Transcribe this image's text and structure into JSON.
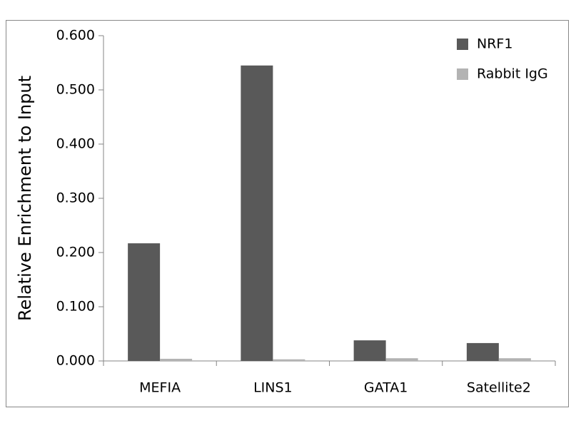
{
  "chart_data": {
    "type": "bar",
    "y_label": "Relative Enrichment to Input",
    "categories": [
      "MEFIA",
      "LINS1",
      "GATA1",
      "Satellite2"
    ],
    "series": [
      {
        "name": "NRF1",
        "color": "#595959",
        "values": [
          0.217,
          0.545,
          0.038,
          0.033
        ]
      },
      {
        "name": "Rabbit IgG",
        "color": "#b3b3b3",
        "values": [
          0.004,
          0.003,
          0.005,
          0.005
        ]
      }
    ],
    "ylim": [
      0,
      0.6
    ],
    "yticks": [
      {
        "value": 0,
        "label": "0.000"
      },
      {
        "value": 0.1,
        "label": "0.100"
      },
      {
        "value": 0.2,
        "label": "0.200"
      },
      {
        "value": 0.3,
        "label": "0.300"
      },
      {
        "value": 0.4,
        "label": "0.400"
      },
      {
        "value": 0.5,
        "label": "0.500"
      },
      {
        "value": 0.6,
        "label": "0.600"
      }
    ],
    "legend": "top-right"
  }
}
